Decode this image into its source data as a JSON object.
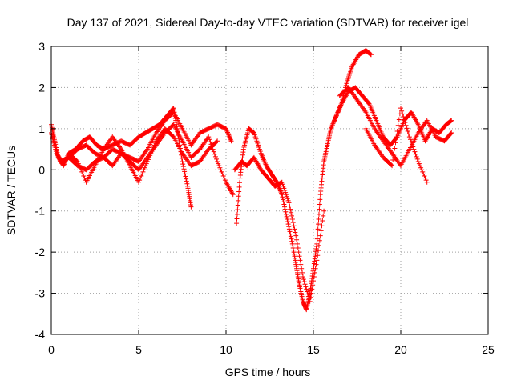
{
  "chart_data": {
    "type": "scatter",
    "title": "Day 137 of 2021, Sidereal Day-to-day VTEC variation (SDTVAR) for receiver igel",
    "xlabel": "GPS time / hours",
    "ylabel": "SDTVAR / TECUs",
    "xlim": [
      0,
      25
    ],
    "ylim": [
      -4,
      3
    ],
    "xticks": [
      "0",
      "5",
      "10",
      "15",
      "20",
      "25"
    ],
    "yticks": [
      "-4",
      "-3",
      "-2",
      "-1",
      "0",
      "1",
      "2",
      "3"
    ],
    "grid": true,
    "marker": "plus",
    "color": "#ff0000",
    "series": [
      {
        "x": [
          0.0,
          0.2,
          0.4,
          0.7,
          1.0,
          1.4,
          1.8,
          2.2,
          2.6,
          3.0,
          3.5,
          4.0,
          4.5,
          5.0,
          5.4,
          5.8,
          6.2,
          6.6,
          7.0,
          7.2,
          7.5,
          7.8,
          8.0
        ],
        "y": [
          1.1,
          0.7,
          0.3,
          0.1,
          0.4,
          0.5,
          0.7,
          0.8,
          0.6,
          0.5,
          0.6,
          0.7,
          0.6,
          0.8,
          0.9,
          1.0,
          1.1,
          1.3,
          1.5,
          1.0,
          0.2,
          -0.4,
          -0.9
        ]
      },
      {
        "x": [
          0.0,
          0.3,
          0.6,
          1.0,
          1.5,
          2.0,
          2.5,
          3.0,
          3.5,
          4.0,
          4.5,
          5.0,
          5.5,
          6.0,
          6.5,
          7.0,
          7.5,
          8.0,
          8.5,
          9.0,
          9.5,
          10.0,
          10.3
        ],
        "y": [
          0.9,
          0.4,
          0.2,
          0.3,
          0.5,
          0.6,
          0.4,
          0.3,
          0.5,
          0.4,
          0.3,
          0.2,
          0.5,
          0.9,
          1.2,
          1.4,
          1.0,
          0.6,
          0.9,
          1.0,
          1.1,
          1.0,
          0.7
        ]
      },
      {
        "x": [
          0.5,
          1.0,
          1.5,
          2.0,
          2.5,
          3.0,
          3.5,
          4.0,
          4.5,
          5.0,
          5.5,
          6.0,
          6.5,
          7.0,
          7.5,
          8.0,
          8.5,
          9.0,
          9.5,
          10.0,
          10.4
        ],
        "y": [
          0.2,
          0.3,
          0.1,
          0.0,
          0.2,
          0.3,
          0.1,
          0.4,
          0.2,
          0.0,
          0.3,
          0.6,
          0.9,
          1.1,
          0.7,
          0.3,
          0.5,
          0.8,
          0.2,
          -0.3,
          -0.6
        ]
      },
      {
        "x": [
          1.0,
          1.5,
          2.0,
          2.5,
          3.0,
          3.5,
          4.0,
          4.5,
          5.0,
          5.5,
          6.0,
          6.5,
          7.0,
          7.5,
          8.0,
          8.5,
          9.0,
          9.5
        ],
        "y": [
          0.4,
          0.2,
          -0.3,
          0.1,
          0.5,
          0.8,
          0.5,
          0.1,
          -0.3,
          0.2,
          0.7,
          1.0,
          0.8,
          0.4,
          0.1,
          0.2,
          0.5,
          0.7
        ]
      },
      {
        "x": [
          10.6,
          10.8,
          11.0,
          11.3,
          11.6,
          12.0,
          12.3,
          12.6,
          12.9,
          13.2,
          13.5,
          13.8,
          14.0,
          14.2,
          14.4,
          14.6,
          14.8,
          15.0,
          15.2,
          15.4,
          15.6,
          15.8,
          16.0,
          16.3,
          16.6,
          16.9,
          17.2,
          17.6,
          18.0,
          18.3
        ],
        "y": [
          -1.3,
          -0.2,
          0.5,
          1.0,
          0.9,
          0.4,
          0.1,
          -0.1,
          -0.3,
          -0.6,
          -1.2,
          -1.8,
          -2.3,
          -2.8,
          -3.2,
          -3.4,
          -3.0,
          -2.4,
          -1.8,
          -0.6,
          0.2,
          0.6,
          1.0,
          1.3,
          1.6,
          2.1,
          2.5,
          2.8,
          2.9,
          2.8
        ]
      },
      {
        "x": [
          10.5,
          10.9,
          11.2,
          11.6,
          12.0,
          12.4,
          12.8,
          13.2,
          13.6,
          14.0,
          14.4,
          14.8,
          15.2,
          15.6
        ],
        "y": [
          0.0,
          0.2,
          0.1,
          0.3,
          0.0,
          -0.2,
          -0.4,
          -0.3,
          -0.8,
          -1.6,
          -2.6,
          -3.2,
          -2.2,
          -1.0
        ]
      },
      {
        "x": [
          16.2,
          16.6,
          17.0,
          17.4,
          17.8,
          18.2,
          18.6,
          19.0,
          19.4,
          19.8,
          20.2,
          20.6,
          21.0,
          21.4,
          21.8,
          22.2,
          22.6,
          22.9
        ],
        "y": [
          1.2,
          1.6,
          1.9,
          2.0,
          1.8,
          1.6,
          1.2,
          0.8,
          0.6,
          0.8,
          1.2,
          1.4,
          1.1,
          0.7,
          1.0,
          0.9,
          1.1,
          1.2
        ]
      },
      {
        "x": [
          16.5,
          17.0,
          17.5,
          18.0,
          18.5,
          19.0,
          19.5,
          20.0,
          20.5,
          21.0,
          21.5,
          22.0,
          22.5,
          22.9
        ],
        "y": [
          1.8,
          2.0,
          1.7,
          1.4,
          1.0,
          0.7,
          0.4,
          0.1,
          0.5,
          0.9,
          1.2,
          0.8,
          0.7,
          0.9
        ]
      },
      {
        "x": [
          18.0,
          18.5,
          19.0,
          19.5,
          20.0,
          20.5,
          21.0,
          21.5
        ],
        "y": [
          1.0,
          0.6,
          0.3,
          0.1,
          1.5,
          0.8,
          0.2,
          -0.3
        ]
      }
    ]
  }
}
